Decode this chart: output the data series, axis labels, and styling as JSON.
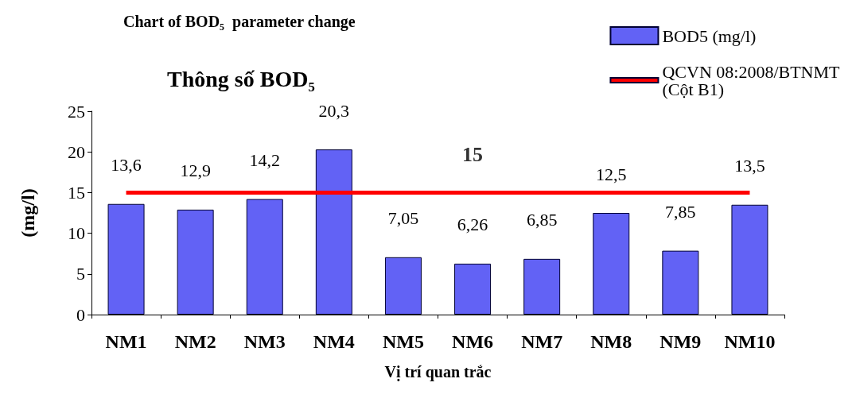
{
  "chart_data": {
    "type": "bar",
    "title": "Chart of BOD₅  parameter change",
    "subtitle": "Thông số BOD₅",
    "xlabel": "Vị trí quan trắc",
    "ylabel": "(mg/l)",
    "categories": [
      "NM1",
      "NM2",
      "NM3",
      "NM4",
      "NM5",
      "NM6",
      "NM7",
      "NM8",
      "NM9",
      "NM10"
    ],
    "series": [
      {
        "name": "BOD5 (mg/l)",
        "color": "#6262f5",
        "values": [
          13.6,
          12.9,
          14.2,
          20.3,
          7.05,
          6.26,
          6.85,
          12.5,
          7.85,
          13.5
        ],
        "value_labels": [
          "13,6",
          "12,9",
          "14,2",
          "20,3",
          "7,05",
          "6,26",
          "6,85",
          "12,5",
          "7,85",
          "13,5"
        ]
      },
      {
        "name": "QCVN 08:2008/BTNMT (Cột B1)",
        "type": "line",
        "color": "#ff0000",
        "values": [
          15,
          15,
          15,
          15,
          15,
          15,
          15,
          15,
          15,
          15
        ]
      }
    ],
    "annotations": [
      {
        "text": "15",
        "x": "NM6",
        "y": 15
      }
    ],
    "marker": "none",
    "line_style": "solid",
    "ylim": [
      0,
      25
    ],
    "yticks": [
      0,
      5,
      10,
      15,
      20,
      25
    ],
    "grid": false,
    "legend": "top right"
  }
}
